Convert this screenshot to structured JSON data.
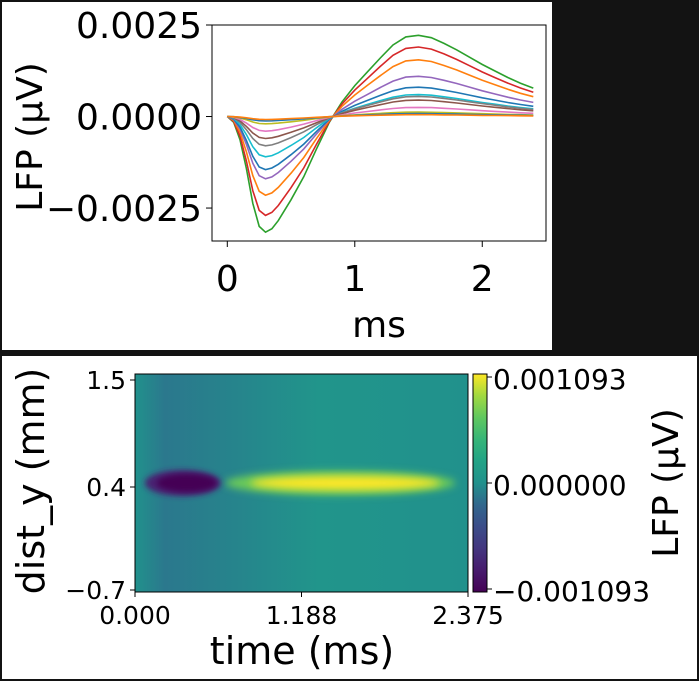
{
  "chart_data": [
    {
      "type": "line",
      "xlabel": "ms",
      "ylabel": "LFP (μV)",
      "xlim": [
        -0.12,
        2.5
      ],
      "ylim": [
        -0.0034,
        0.0025
      ],
      "x_ticks": [
        0,
        1,
        2
      ],
      "x_tick_labels": [
        "0",
        "1",
        "2"
      ],
      "y_ticks": [
        0.0025,
        0.0,
        -0.0025
      ],
      "y_tick_labels": [
        "0.0025",
        "0.0000",
        "−0.0025"
      ],
      "waveform": {
        "t": [
          0,
          0.05,
          0.1,
          0.15,
          0.2,
          0.25,
          0.3,
          0.35,
          0.4,
          0.5,
          0.6,
          0.7,
          0.8,
          0.9,
          1.0,
          1.1,
          1.2,
          1.3,
          1.4,
          1.5,
          1.6,
          1.7,
          1.8,
          1.9,
          2.0,
          2.1,
          2.2,
          2.3,
          2.4
        ],
        "v": [
          0.0,
          -0.05,
          -0.2,
          -0.45,
          -0.75,
          -0.95,
          -1.0,
          -0.97,
          -0.9,
          -0.72,
          -0.52,
          -0.28,
          -0.05,
          0.18,
          0.38,
          0.55,
          0.72,
          0.88,
          0.98,
          1.0,
          0.97,
          0.9,
          0.82,
          0.73,
          0.64,
          0.56,
          0.48,
          0.41,
          0.35
        ]
      },
      "series": [
        {
          "color": "#2ca02c",
          "peak_neg": -0.00316,
          "peak_pos": 0.00222
        },
        {
          "color": "#d62728",
          "peak_neg": -0.0027,
          "peak_pos": 0.0019
        },
        {
          "color": "#ff7f0e",
          "peak_neg": -0.00215,
          "peak_pos": 0.00155
        },
        {
          "color": "#9467bd",
          "peak_neg": -0.0017,
          "peak_pos": 0.0011
        },
        {
          "color": "#1f77b4",
          "peak_neg": -0.00145,
          "peak_pos": 0.0008
        },
        {
          "color": "#17becf",
          "peak_neg": -0.0011,
          "peak_pos": 0.0006
        },
        {
          "color": "#7f7f7f",
          "peak_neg": -0.0008,
          "peak_pos": 0.00055
        },
        {
          "color": "#8c564b",
          "peak_neg": -0.0006,
          "peak_pos": 0.00045
        },
        {
          "color": "#e377c2",
          "peak_neg": -0.0004,
          "peak_pos": 0.00025
        },
        {
          "color": "#bcbd22",
          "peak_neg": -0.0002,
          "peak_pos": 0.00012
        },
        {
          "color": "#1f77b4",
          "peak_neg": -0.00012,
          "peak_pos": 8e-05
        },
        {
          "color": "#ff7f0e",
          "peak_neg": -8e-05,
          "peak_pos": 5e-05
        }
      ]
    },
    {
      "type": "heatmap",
      "xlabel": "time (ms)",
      "ylabel": "dist_y (mm)",
      "xlim": [
        0.0,
        2.375
      ],
      "ylim": [
        -0.7,
        1.5
      ],
      "x_tick_labels": [
        "0.000",
        "1.188",
        "2.375"
      ],
      "y_tick_labels": [
        "1.5",
        "0.4",
        "−0.7"
      ],
      "colormap": "viridis",
      "colorbar": {
        "label": "LFP (μV)",
        "tick_labels": [
          "0.001093",
          "0.000000",
          "−0.001093"
        ],
        "range": [
          -0.001093,
          0.001093
        ]
      },
      "negative_blob": {
        "t_center": 0.37,
        "y_center": 0.4,
        "value": -0.001093
      },
      "positive_band": {
        "t_center": 1.5,
        "y_center": 0.4,
        "value": 0.001093
      }
    }
  ]
}
